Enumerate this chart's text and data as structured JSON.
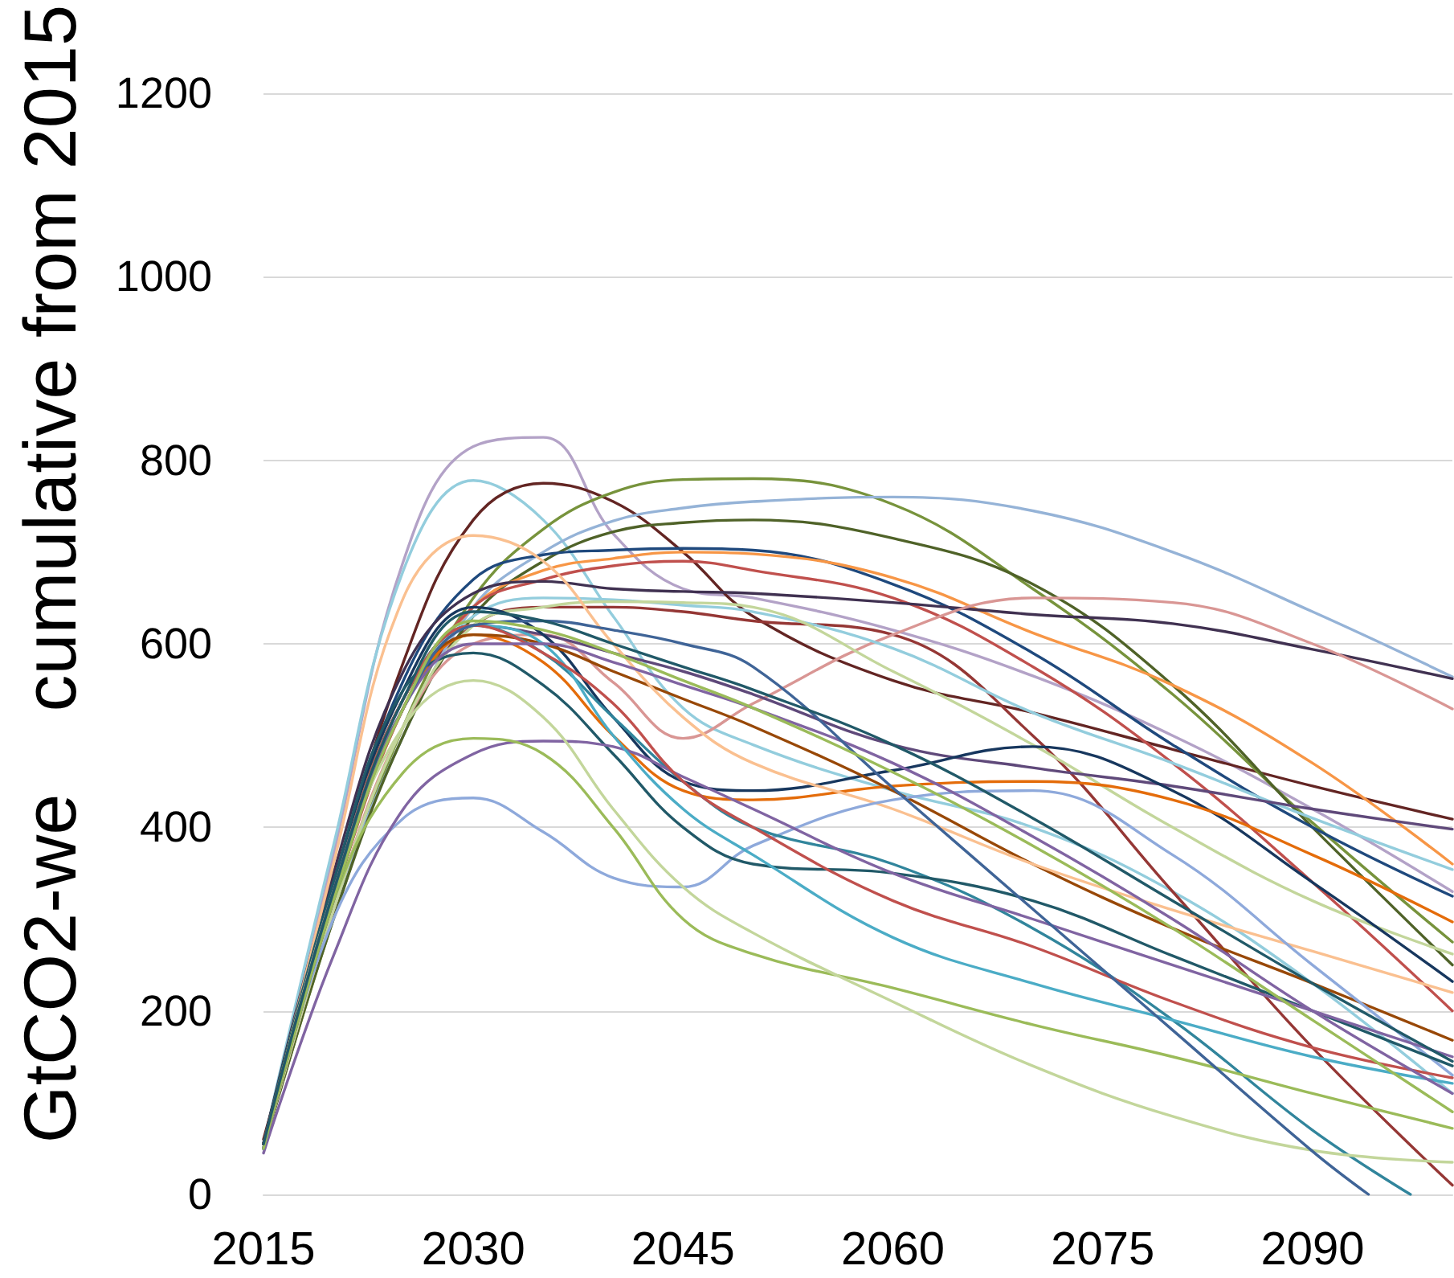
{
  "chart_data": {
    "type": "line",
    "ylabel": "GtCO2-we    cumulative from 2015",
    "x": [
      2015,
      2020,
      2025,
      2030,
      2035,
      2040,
      2045,
      2050,
      2060,
      2070,
      2080,
      2090,
      2100
    ],
    "xlim": [
      2015,
      2100
    ],
    "xticks": [
      2015,
      2030,
      2045,
      2060,
      2075,
      2090
    ],
    "ylim": [
      0,
      1200
    ],
    "yticks": [
      0,
      200,
      400,
      600,
      800,
      1000,
      1200
    ],
    "grid": "y",
    "series": [
      {
        "color": "#b3a2c7",
        "values": [
          50,
          370,
          690,
          815,
          825,
          720,
          660,
          650,
          615,
          565,
          500,
          420,
          330
        ]
      },
      {
        "color": "#93cddd",
        "values": [
          55,
          380,
          680,
          778,
          735,
          630,
          530,
          490,
          440,
          400,
          330,
          230,
          110
        ]
      },
      {
        "color": "#632523",
        "values": [
          60,
          330,
          580,
          735,
          775,
          755,
          700,
          630,
          560,
          525,
          485,
          445,
          409
        ]
      },
      {
        "color": "#953735",
        "values": [
          55,
          320,
          530,
          620,
          640,
          640,
          635,
          625,
          610,
          500,
          330,
          160,
          10
        ]
      },
      {
        "color": "#77933c",
        "values": [
          50,
          300,
          510,
          650,
          725,
          765,
          779,
          780,
          752,
          660,
          545,
          405,
          275
        ]
      },
      {
        "color": "#95b3d7",
        "values": [
          50,
          310,
          500,
          640,
          700,
          734,
          748,
          755,
          760,
          745,
          700,
          635,
          564
        ]
      },
      {
        "color": "#4f6228",
        "values": [
          50,
          300,
          500,
          630,
          690,
          722,
          732,
          735,
          715,
          665,
          555,
          400,
          250
        ]
      },
      {
        "color": "#1f497d",
        "values": [
          55,
          340,
          560,
          670,
          697,
          702,
          704,
          702,
          665,
          590,
          490,
          400,
          325
        ]
      },
      {
        "color": "#f79646",
        "values": [
          50,
          320,
          530,
          640,
          680,
          693,
          700,
          698,
          672,
          612,
          555,
          470,
          360
        ]
      },
      {
        "color": "#c0504d",
        "values": [
          55,
          320,
          530,
          640,
          670,
          685,
          690,
          680,
          650,
          575,
          470,
          340,
          200
        ]
      },
      {
        "color": "#403151",
        "values": [
          55,
          350,
          570,
          655,
          668,
          660,
          657,
          655,
          645,
          632,
          622,
          594,
          562
        ]
      },
      {
        "color": "#d99694",
        "values": [
          50,
          310,
          510,
          600,
          610,
          558,
          497,
          535,
          610,
          650,
          645,
          600,
          529
        ]
      },
      {
        "color": "#93cddd",
        "values": [
          50,
          330,
          540,
          630,
          650,
          648,
          642,
          635,
          595,
          525,
          470,
          410,
          354
        ]
      },
      {
        "color": "#c3d69b",
        "values": [
          50,
          310,
          510,
          620,
          640,
          646,
          645,
          640,
          570,
          490,
          400,
          320,
          262
        ]
      },
      {
        "color": "#5f497a",
        "values": [
          50,
          330,
          540,
          620,
          610,
          590,
          570,
          545,
          490,
          465,
          445,
          420,
          398
        ]
      },
      {
        "color": "#17375e",
        "values": [
          55,
          340,
          550,
          640,
          610,
          520,
          450,
          440,
          462,
          488,
          440,
          340,
          232
        ]
      },
      {
        "color": "#e46c0a",
        "values": [
          50,
          320,
          530,
          610,
          580,
          500,
          440,
          430,
          445,
          450,
          430,
          370,
          297
        ]
      },
      {
        "color": "#984807",
        "values": [
          55,
          330,
          540,
          610,
          600,
          570,
          540,
          510,
          440,
          360,
          290,
          230,
          168
        ]
      },
      {
        "color": "#fac090",
        "values": [
          50,
          360,
          650,
          718,
          690,
          600,
          520,
          470,
          420,
          360,
          310,
          265,
          220
        ]
      },
      {
        "color": "#8ea9db",
        "values": [
          50,
          300,
          410,
          432,
          395,
          345,
          335,
          380,
          430,
          440,
          370,
          250,
          130
        ]
      },
      {
        "color": "#31859c",
        "x": [
          2015,
          2020,
          2025,
          2030,
          2035,
          2040,
          2045,
          2050,
          2060,
          2070,
          2080,
          2090,
          2097
        ],
        "values": [
          50,
          330,
          540,
          620,
          590,
          520,
          450,
          400,
          360,
          290,
          190,
          70,
          0
        ]
      },
      {
        "color": "#215968",
        "values": [
          55,
          340,
          550,
          590,
          555,
          480,
          400,
          360,
          350,
          320,
          260,
          200,
          140
        ]
      },
      {
        "color": "#8064a2",
        "values": [
          45,
          260,
          420,
          480,
          494,
          488,
          455,
          420,
          350,
          300,
          250,
          200,
          150
        ]
      },
      {
        "color": "#9bbb59",
        "values": [
          50,
          320,
          460,
          497,
          480,
          400,
          300,
          262,
          225,
          185,
          150,
          110,
          72
        ]
      },
      {
        "color": "#c3d69b",
        "values": [
          50,
          330,
          510,
          560,
          520,
          420,
          335,
          285,
          210,
          140,
          85,
          48,
          35
        ]
      },
      {
        "color": "#4bacc6",
        "values": [
          50,
          330,
          540,
          620,
          600,
          500,
          420,
          370,
          280,
          230,
          190,
          150,
          121
        ]
      },
      {
        "color": "#c0504d",
        "values": [
          55,
          330,
          540,
          620,
          590,
          535,
          450,
          400,
          320,
          270,
          210,
          160,
          127
        ]
      },
      {
        "color": "#8064a2",
        "values": [
          50,
          330,
          530,
          600,
          600,
          580,
          555,
          530,
          470,
          390,
          300,
          200,
          110
        ]
      },
      {
        "color": "#3f6497",
        "x": [
          2015,
          2020,
          2025,
          2030,
          2035,
          2040,
          2045,
          2050,
          2060,
          2070,
          2080,
          2090,
          2094
        ],
        "values": [
          50,
          320,
          530,
          620,
          625,
          615,
          600,
          575,
          443,
          311,
          179,
          47,
          0
        ]
      },
      {
        "color": "#9bbb59",
        "values": [
          50,
          320,
          530,
          625,
          615,
          590,
          560,
          530,
          460,
          380,
          290,
          190,
          90
        ]
      },
      {
        "color": "#215968",
        "values": [
          55,
          330,
          540,
          635,
          625,
          600,
          575,
          550,
          490,
          410,
          320,
          230,
          145
        ]
      }
    ]
  }
}
